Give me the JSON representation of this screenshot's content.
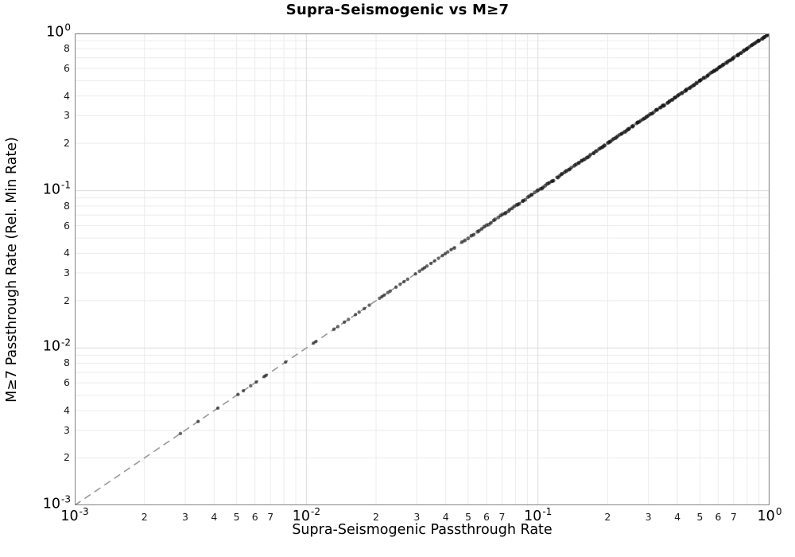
{
  "chart_data": {
    "type": "scatter",
    "title": "Supra-Seismogenic vs M≥7",
    "xlabel": "Supra-Seismogenic Passthrough Rate",
    "ylabel": "M≥7 Passthrough Rate (Rel. Min Rate)",
    "xscale": "log",
    "yscale": "log",
    "xlim": [
      0.001,
      1.0
    ],
    "ylim": [
      0.001,
      1.0
    ],
    "grid": "major+minor",
    "legend": "none",
    "relation": "all points lie on the identity line y = x",
    "reference_line": {
      "style": "dashed",
      "from": [
        0.001,
        0.001
      ],
      "to": [
        1.0,
        1.0
      ],
      "color": "#999999",
      "width": 1.6,
      "dash": "9 6"
    },
    "marker": {
      "shape": "circle",
      "color": "#111111",
      "alpha": 0.62,
      "radius": 2.2
    },
    "points_x": [
      0.00286,
      0.00341,
      0.00415,
      0.00507,
      0.00535,
      0.00575,
      0.00608,
      0.00658,
      0.0067,
      0.00814,
      0.01074,
      0.011,
      0.01316,
      0.01368,
      0.0146,
      0.0152,
      0.0163,
      0.0169,
      0.0178,
      0.0187,
      0.0207,
      0.0212,
      0.0217,
      0.0225,
      0.023,
      0.0244,
      0.0254,
      0.0264,
      0.0274,
      0.0296,
      0.0308,
      0.0317,
      0.0324,
      0.0332,
      0.0345,
      0.0358,
      0.0372,
      0.0387,
      0.0398,
      0.0408,
      0.0422
    ],
    "dense_band": {
      "x_from": 0.044,
      "x_to": 1.0,
      "count": 215,
      "density_bias": 0.75,
      "jitter_log": 0.009,
      "seed": 7,
      "note": "hundreds of y=x points merge into a solid black band up to (1,1)"
    },
    "x_axis": {
      "major": [
        {
          "base": "10",
          "exp": "-3",
          "value": 0.001
        },
        {
          "base": "10",
          "exp": "-2",
          "value": 0.01
        },
        {
          "base": "10",
          "exp": "-1",
          "value": 0.1
        },
        {
          "base": "10",
          "exp": "0",
          "value": 1.0
        }
      ],
      "minor_labeled_subs": [
        2,
        3,
        4,
        5,
        6,
        7
      ],
      "minor_grid_subs": [
        2,
        3,
        4,
        5,
        6,
        7,
        8,
        9
      ],
      "decade_exponents": [
        -3,
        -2,
        -1
      ]
    },
    "y_axis": {
      "major": [
        {
          "base": "10",
          "exp": "-3",
          "value": 0.001
        },
        {
          "base": "10",
          "exp": "-2",
          "value": 0.01
        },
        {
          "base": "10",
          "exp": "-1",
          "value": 0.1
        },
        {
          "base": "10",
          "exp": "0",
          "value": 1.0
        }
      ],
      "minor_labeled_subs": [
        2,
        3,
        4,
        6,
        8
      ],
      "minor_grid_subs": [
        2,
        3,
        4,
        5,
        6,
        7,
        8,
        9
      ],
      "decade_exponents": [
        -3,
        -2,
        -1
      ]
    },
    "colors": {
      "grid_major": "#dcdcdc",
      "grid_minor": "#ececec",
      "spine": "#8a8a8a",
      "text": "#000000",
      "marker": "#111111",
      "ref_line": "#999999",
      "background": "#ffffff"
    }
  }
}
